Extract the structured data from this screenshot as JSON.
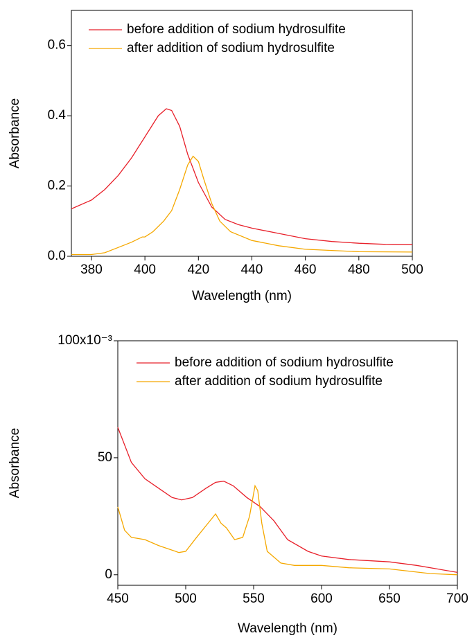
{
  "chart_data": [
    {
      "type": "line",
      "xlabel": "Wavelength (nm)",
      "ylabel": "Absorbance",
      "xlim": [
        372.5,
        500
      ],
      "xticks": [
        380,
        400,
        420,
        440,
        460,
        480,
        500
      ],
      "ylim": [
        0,
        0.7
      ],
      "yticks": [
        {
          "value": 0,
          "label": "0.0"
        },
        0.2,
        0.4,
        0.6
      ],
      "legend": "upper left",
      "series": [
        {
          "name": "before addition of sodium hydrosulfite",
          "color": "#e8202a",
          "x": [
            372.5,
            380,
            385,
            390,
            395,
            400,
            405,
            408,
            410,
            413,
            416,
            420,
            425,
            430,
            435,
            440,
            450,
            460,
            470,
            480,
            490,
            500
          ],
          "values": [
            0.135,
            0.16,
            0.19,
            0.23,
            0.28,
            0.34,
            0.4,
            0.42,
            0.415,
            0.37,
            0.29,
            0.21,
            0.14,
            0.105,
            0.09,
            0.08,
            0.065,
            0.05,
            0.042,
            0.037,
            0.034,
            0.033
          ]
        },
        {
          "name": "after addition of sodium hydrosulfite",
          "color": "#f5a800",
          "x": [
            372.5,
            380,
            385,
            390,
            395,
            399,
            400,
            403,
            407,
            410,
            413,
            416,
            418,
            420,
            422,
            425,
            428,
            432,
            440,
            450,
            460,
            480,
            500
          ],
          "values": [
            0.005,
            0.005,
            0.01,
            0.025,
            0.04,
            0.055,
            0.055,
            0.07,
            0.1,
            0.13,
            0.19,
            0.26,
            0.285,
            0.27,
            0.22,
            0.15,
            0.1,
            0.07,
            0.045,
            0.03,
            0.02,
            0.013,
            0.012
          ]
        }
      ]
    },
    {
      "type": "line",
      "xlabel": "Wavelength (nm)",
      "ylabel": "Absorbance",
      "xlim": [
        450,
        700
      ],
      "xticks": [
        450,
        500,
        550,
        600,
        650,
        700
      ],
      "ylim": [
        -4.5,
        100
      ],
      "yticks": [
        0,
        50,
        {
          "value": 100,
          "label": "100x10⁻³"
        }
      ],
      "legend": "upper left",
      "series": [
        {
          "name": "before addition of sodium hydrosulfite",
          "color": "#e8202a",
          "x": [
            450,
            460,
            470,
            480,
            490,
            497,
            505,
            515,
            522,
            528,
            535,
            545,
            555,
            565,
            575,
            590,
            600,
            620,
            650,
            670,
            700
          ],
          "values": [
            63,
            48,
            41,
            37,
            33,
            32,
            33,
            37,
            39.5,
            40,
            38,
            33,
            29,
            23,
            15,
            10,
            8,
            6.5,
            5.5,
            4,
            1
          ]
        },
        {
          "name": "after addition of sodium hydrosulfite",
          "color": "#f5a800",
          "x": [
            450,
            455,
            460,
            470,
            480,
            495,
            500,
            508,
            515,
            522,
            526,
            530,
            536,
            542,
            547,
            551,
            553,
            556,
            560,
            570,
            580,
            600,
            620,
            650,
            680,
            700
          ],
          "values": [
            29,
            19,
            16,
            15,
            12.5,
            9.5,
            10,
            16,
            21,
            26,
            22,
            20,
            15,
            16,
            25,
            38,
            36,
            22,
            10,
            5,
            4,
            4,
            3,
            2.5,
            0.5,
            0
          ]
        }
      ]
    }
  ]
}
